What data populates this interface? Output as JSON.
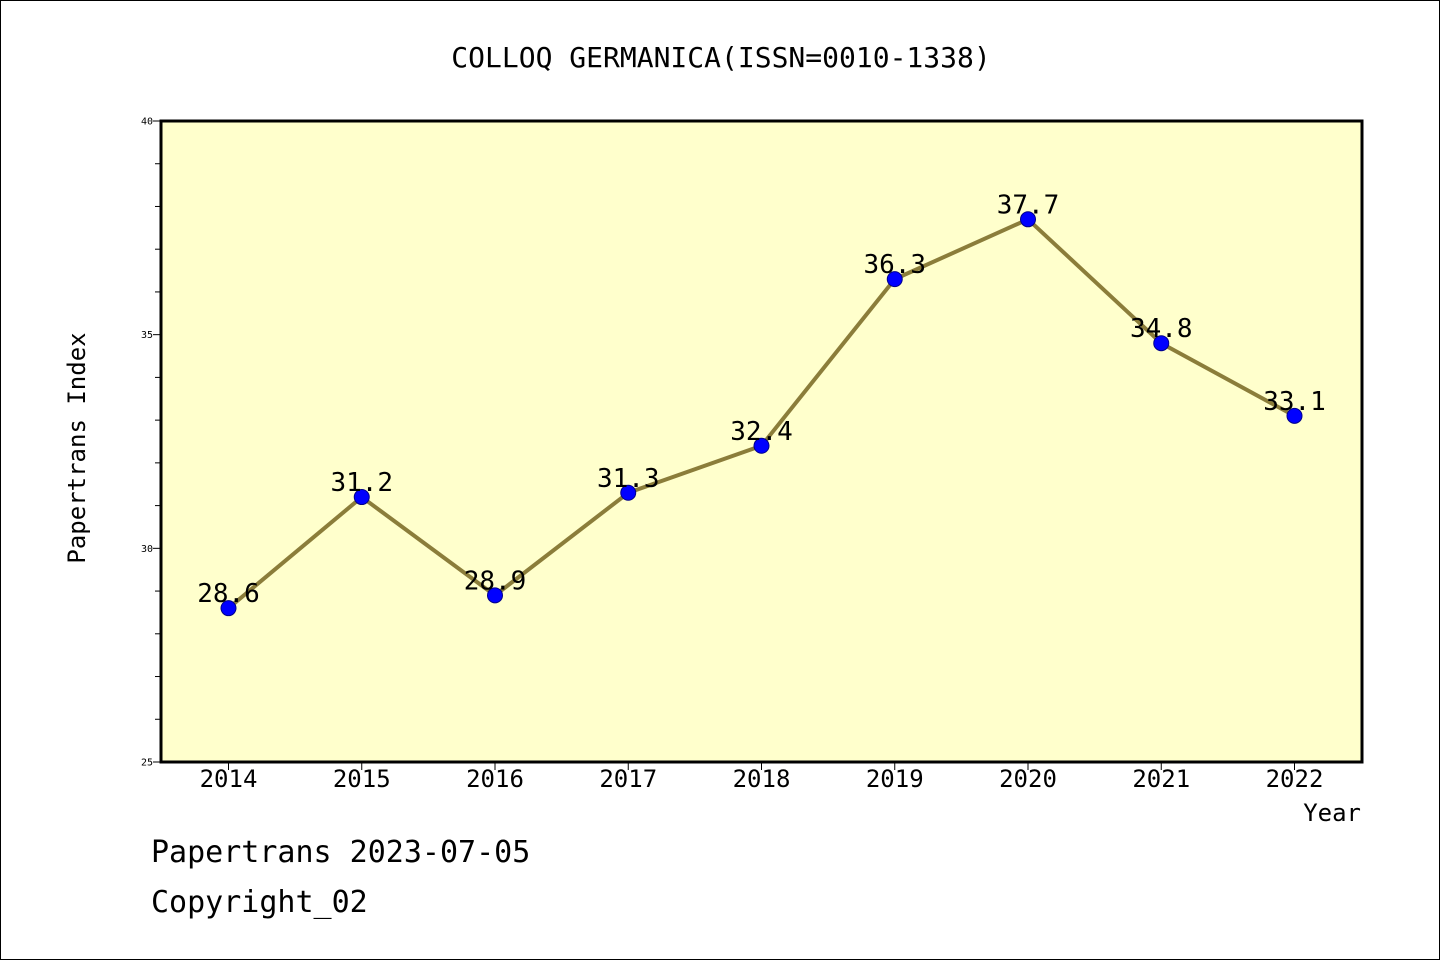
{
  "chart_data": {
    "type": "line",
    "title": "COLLOQ GERMANICA(ISSN=0010-1338)",
    "xlabel": "Year",
    "ylabel": "Papertrans Index",
    "categories": [
      "2014",
      "2015",
      "2016",
      "2017",
      "2018",
      "2019",
      "2020",
      "2021",
      "2022"
    ],
    "values": [
      28.6,
      31.2,
      28.9,
      31.3,
      32.4,
      36.3,
      37.7,
      34.8,
      33.1
    ],
    "value_labels": [
      "28.6",
      "31.2",
      "28.9",
      "31.3",
      "32.4",
      "36.3",
      "37.7",
      "34.8",
      "33.1"
    ],
    "ylim": [
      25,
      40
    ],
    "yticks": [
      "25",
      "30",
      "35",
      "40"
    ],
    "grid": false,
    "colors": {
      "plot_background": "#ffffcc",
      "line": "#8b7d3a",
      "marker": "#0000ff"
    }
  },
  "footer": {
    "line1": "Papertrans 2023-07-05",
    "line2": "Copyright_02"
  }
}
